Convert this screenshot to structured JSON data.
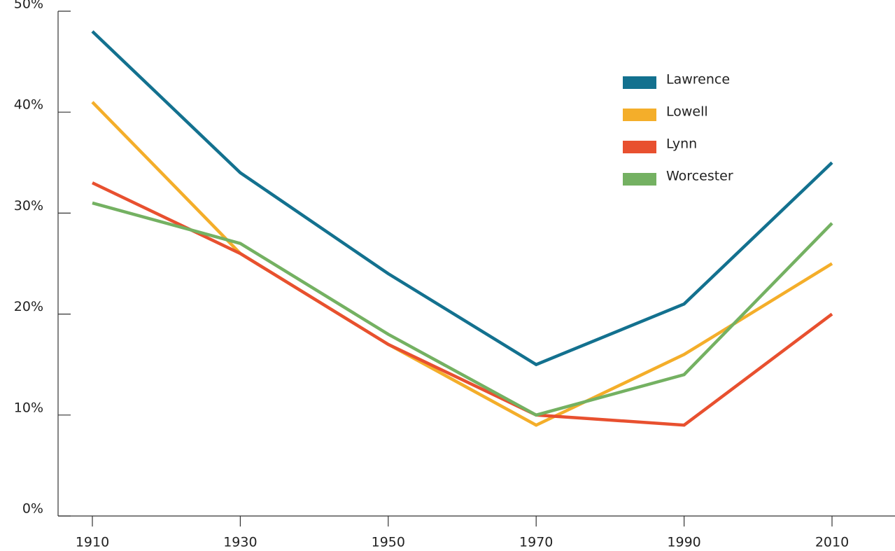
{
  "chart_data": {
    "type": "line",
    "categories": [
      "1910",
      "1930",
      "1950",
      "1970",
      "1990",
      "2010"
    ],
    "series": [
      {
        "name": "Lawrence",
        "color": "#13718f",
        "values": [
          48,
          34,
          24,
          15,
          21,
          35
        ]
      },
      {
        "name": "Lowell",
        "color": "#f4ae2a",
        "values": [
          41,
          26,
          17,
          9,
          16,
          25
        ]
      },
      {
        "name": "Lynn",
        "color": "#e8502f",
        "values": [
          33,
          26,
          17,
          10,
          9,
          20
        ]
      },
      {
        "name": "Worcester",
        "color": "#74b162",
        "values": [
          31,
          27,
          18,
          10,
          14,
          29
        ]
      }
    ],
    "ylim": [
      0,
      50
    ],
    "yticks": [
      {
        "value": 0,
        "label": "0%"
      },
      {
        "value": 10,
        "label": "10%"
      },
      {
        "value": 20,
        "label": "20%"
      },
      {
        "value": 30,
        "label": "30%"
      },
      {
        "value": 40,
        "label": "40%"
      },
      {
        "value": 50,
        "label": "50%"
      }
    ],
    "legend": "top-right"
  }
}
